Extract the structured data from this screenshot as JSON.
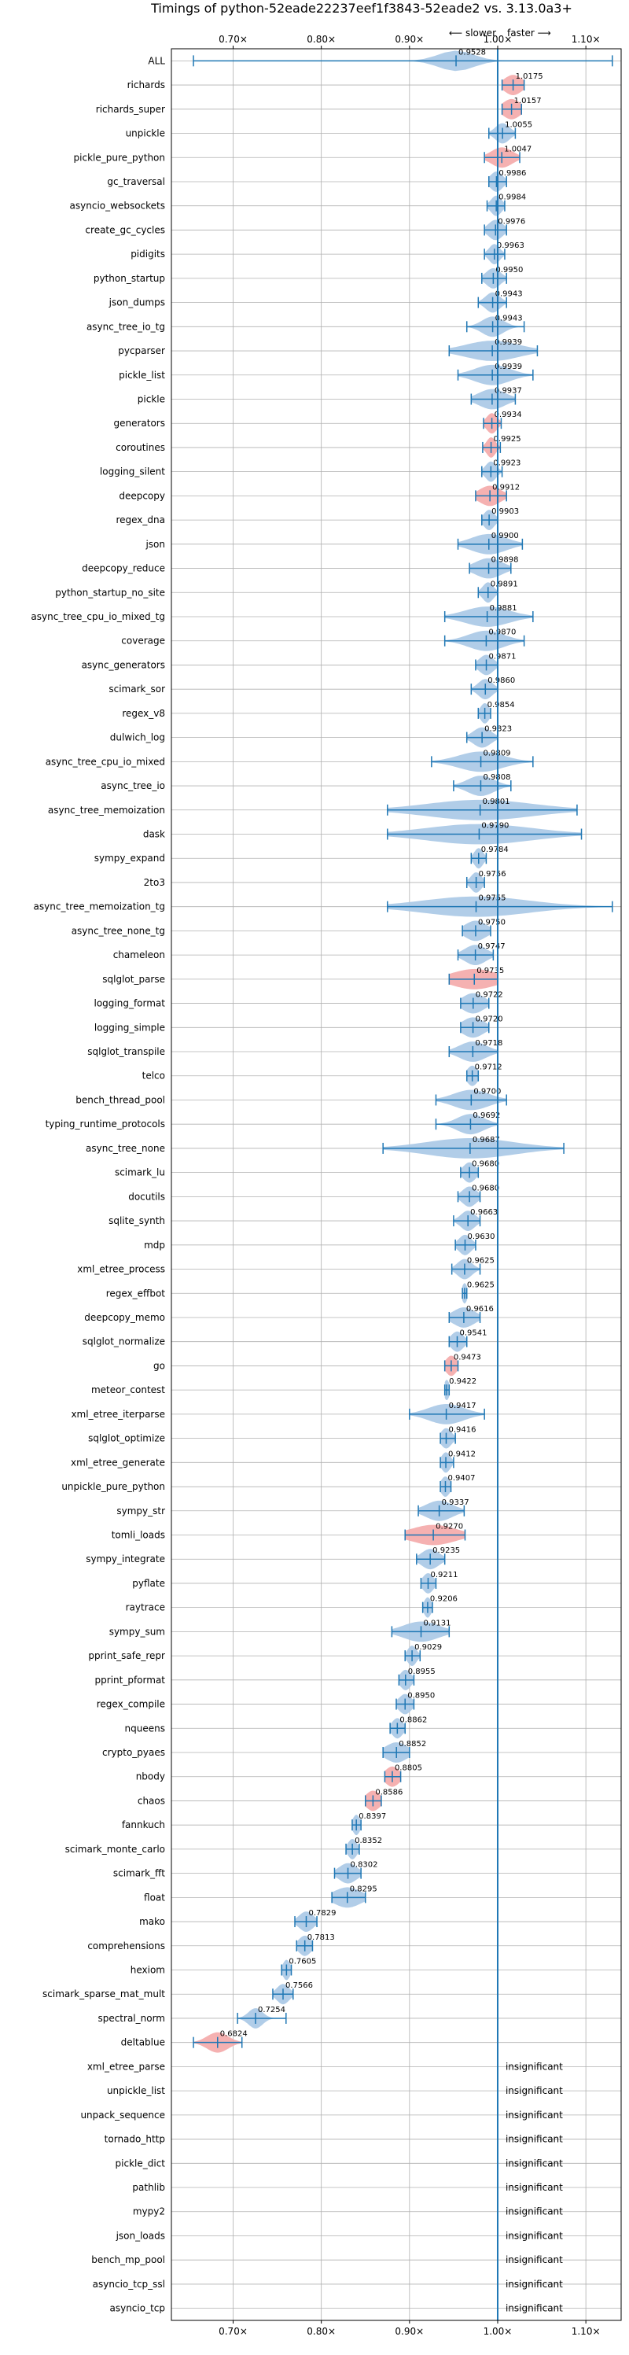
{
  "chart_data": {
    "type": "violin",
    "title": "Timings of python-52eade22237eef1f3843-52eade2 vs. 3.13.0a3+",
    "direction_slower": "⟵ slower",
    "direction_faster": "faster ⟶",
    "x_ticks": [
      "0.70×",
      "0.80×",
      "0.90×",
      "1.00×",
      "1.10×"
    ],
    "x_tick_values": [
      0.7,
      0.8,
      0.9,
      1.0,
      1.1
    ],
    "xlim": [
      0.63,
      1.14
    ],
    "insignificant_label": "insignificant",
    "benchmarks": [
      {
        "name": "ALL",
        "value": 0.9528,
        "label": "0.9528",
        "min": 0.655,
        "max": 1.13,
        "spread": 0.02,
        "color": "blue"
      },
      {
        "name": "richards",
        "value": 1.0175,
        "label": "1.0175",
        "min": 1.005,
        "max": 1.03,
        "spread": 0.01,
        "color": "red"
      },
      {
        "name": "richards_super",
        "value": 1.0157,
        "label": "1.0157",
        "min": 1.005,
        "max": 1.027,
        "spread": 0.01,
        "color": "red"
      },
      {
        "name": "unpickle",
        "value": 1.0055,
        "label": "1.0055",
        "min": 0.99,
        "max": 1.02,
        "spread": 0.008,
        "color": "blue"
      },
      {
        "name": "pickle_pure_python",
        "value": 1.0047,
        "label": "1.0047",
        "min": 0.985,
        "max": 1.025,
        "spread": 0.012,
        "color": "red"
      },
      {
        "name": "gc_traversal",
        "value": 0.9986,
        "label": "0.9986",
        "min": 0.99,
        "max": 1.01,
        "spread": 0.007,
        "color": "blue"
      },
      {
        "name": "asyncio_websockets",
        "value": 0.9984,
        "label": "0.9984",
        "min": 0.988,
        "max": 1.008,
        "spread": 0.006,
        "color": "blue"
      },
      {
        "name": "create_gc_cycles",
        "value": 0.9976,
        "label": "0.9976",
        "min": 0.985,
        "max": 1.01,
        "spread": 0.008,
        "color": "blue"
      },
      {
        "name": "pidigits",
        "value": 0.9963,
        "label": "0.9963",
        "min": 0.985,
        "max": 1.008,
        "spread": 0.006,
        "color": "blue"
      },
      {
        "name": "python_startup",
        "value": 0.995,
        "label": "0.9950",
        "min": 0.982,
        "max": 1.01,
        "spread": 0.008,
        "color": "blue"
      },
      {
        "name": "json_dumps",
        "value": 0.9943,
        "label": "0.9943",
        "min": 0.978,
        "max": 1.01,
        "spread": 0.008,
        "color": "blue"
      },
      {
        "name": "async_tree_io_tg",
        "value": 0.9943,
        "label": "0.9943",
        "min": 0.965,
        "max": 1.03,
        "spread": 0.012,
        "color": "blue"
      },
      {
        "name": "pycparser",
        "value": 0.9939,
        "label": "0.9939",
        "min": 0.945,
        "max": 1.045,
        "spread": 0.03,
        "color": "blue"
      },
      {
        "name": "pickle_list",
        "value": 0.9939,
        "label": "0.9939",
        "min": 0.955,
        "max": 1.04,
        "spread": 0.02,
        "color": "blue"
      },
      {
        "name": "pickle",
        "value": 0.9937,
        "label": "0.9937",
        "min": 0.97,
        "max": 1.02,
        "spread": 0.015,
        "color": "blue"
      },
      {
        "name": "generators",
        "value": 0.9934,
        "label": "0.9934",
        "min": 0.984,
        "max": 1.004,
        "spread": 0.006,
        "color": "red"
      },
      {
        "name": "coroutines",
        "value": 0.9925,
        "label": "0.9925",
        "min": 0.983,
        "max": 1.003,
        "spread": 0.005,
        "color": "red"
      },
      {
        "name": "logging_silent",
        "value": 0.9923,
        "label": "0.9923",
        "min": 0.982,
        "max": 1.005,
        "spread": 0.006,
        "color": "blue"
      },
      {
        "name": "deepcopy",
        "value": 0.9912,
        "label": "0.9912",
        "min": 0.975,
        "max": 1.01,
        "spread": 0.012,
        "color": "red"
      },
      {
        "name": "regex_dna",
        "value": 0.9903,
        "label": "0.9903",
        "min": 0.982,
        "max": 1.0,
        "spread": 0.006,
        "color": "blue"
      },
      {
        "name": "json",
        "value": 0.99,
        "label": "0.9900",
        "min": 0.955,
        "max": 1.028,
        "spread": 0.02,
        "color": "blue"
      },
      {
        "name": "deepcopy_reduce",
        "value": 0.9898,
        "label": "0.9898",
        "min": 0.968,
        "max": 1.015,
        "spread": 0.015,
        "color": "blue"
      },
      {
        "name": "python_startup_no_site",
        "value": 0.9891,
        "label": "0.9891",
        "min": 0.978,
        "max": 1.0,
        "spread": 0.006,
        "color": "blue"
      },
      {
        "name": "async_tree_cpu_io_mixed_tg",
        "value": 0.9881,
        "label": "0.9881",
        "min": 0.94,
        "max": 1.04,
        "spread": 0.025,
        "color": "blue"
      },
      {
        "name": "coverage",
        "value": 0.987,
        "label": "0.9870",
        "min": 0.94,
        "max": 1.03,
        "spread": 0.02,
        "color": "blue"
      },
      {
        "name": "async_generators",
        "value": 0.9871,
        "label": "0.9871",
        "min": 0.975,
        "max": 1.0,
        "spread": 0.008,
        "color": "blue"
      },
      {
        "name": "scimark_sor",
        "value": 0.986,
        "label": "0.9860",
        "min": 0.97,
        "max": 1.0,
        "spread": 0.008,
        "color": "blue"
      },
      {
        "name": "regex_v8",
        "value": 0.9854,
        "label": "0.9854",
        "min": 0.978,
        "max": 0.992,
        "spread": 0.005,
        "color": "blue"
      },
      {
        "name": "dulwich_log",
        "value": 0.9823,
        "label": "0.9823",
        "min": 0.965,
        "max": 1.0,
        "spread": 0.01,
        "color": "blue"
      },
      {
        "name": "async_tree_cpu_io_mixed",
        "value": 0.9809,
        "label": "0.9809",
        "min": 0.925,
        "max": 1.04,
        "spread": 0.025,
        "color": "blue"
      },
      {
        "name": "async_tree_io",
        "value": 0.9808,
        "label": "0.9808",
        "min": 0.95,
        "max": 1.015,
        "spread": 0.015,
        "color": "blue"
      },
      {
        "name": "async_tree_memoization",
        "value": 0.9801,
        "label": "0.9801",
        "min": 0.875,
        "max": 1.09,
        "spread": 0.06,
        "color": "blue"
      },
      {
        "name": "dask",
        "value": 0.979,
        "label": "0.9790",
        "min": 0.875,
        "max": 1.095,
        "spread": 0.06,
        "color": "blue"
      },
      {
        "name": "sympy_expand",
        "value": 0.9784,
        "label": "0.9784",
        "min": 0.97,
        "max": 0.987,
        "spread": 0.005,
        "color": "blue"
      },
      {
        "name": "2to3",
        "value": 0.9756,
        "label": "0.9756",
        "min": 0.965,
        "max": 0.985,
        "spread": 0.006,
        "color": "blue"
      },
      {
        "name": "async_tree_memoization_tg",
        "value": 0.9755,
        "label": "0.9755",
        "min": 0.875,
        "max": 1.13,
        "spread": 0.06,
        "color": "blue"
      },
      {
        "name": "async_tree_none_tg",
        "value": 0.975,
        "label": "0.9750",
        "min": 0.96,
        "max": 0.992,
        "spread": 0.012,
        "color": "blue"
      },
      {
        "name": "chameleon",
        "value": 0.9747,
        "label": "0.9747",
        "min": 0.955,
        "max": 0.995,
        "spread": 0.012,
        "color": "blue"
      },
      {
        "name": "sqlglot_parse",
        "value": 0.9735,
        "label": "0.9735",
        "min": 0.945,
        "max": 1.0,
        "spread": 0.025,
        "color": "red"
      },
      {
        "name": "logging_format",
        "value": 0.9722,
        "label": "0.9722",
        "min": 0.958,
        "max": 0.99,
        "spread": 0.012,
        "color": "blue"
      },
      {
        "name": "logging_simple",
        "value": 0.972,
        "label": "0.9720",
        "min": 0.958,
        "max": 0.99,
        "spread": 0.012,
        "color": "blue"
      },
      {
        "name": "sqlglot_transpile",
        "value": 0.9718,
        "label": "0.9718",
        "min": 0.945,
        "max": 1.0,
        "spread": 0.015,
        "color": "blue"
      },
      {
        "name": "telco",
        "value": 0.9712,
        "label": "0.9712",
        "min": 0.965,
        "max": 0.978,
        "spread": 0.006,
        "color": "blue"
      },
      {
        "name": "bench_thread_pool",
        "value": 0.97,
        "label": "0.9700",
        "min": 0.93,
        "max": 1.01,
        "spread": 0.02,
        "color": "blue"
      },
      {
        "name": "typing_runtime_protocols",
        "value": 0.9692,
        "label": "0.9692",
        "min": 0.93,
        "max": 1.0,
        "spread": 0.015,
        "color": "blue"
      },
      {
        "name": "async_tree_none",
        "value": 0.9687,
        "label": "0.9687",
        "min": 0.87,
        "max": 1.075,
        "spread": 0.05,
        "color": "blue"
      },
      {
        "name": "scimark_lu",
        "value": 0.968,
        "label": "0.9680",
        "min": 0.958,
        "max": 0.978,
        "spread": 0.007,
        "color": "blue"
      },
      {
        "name": "docutils",
        "value": 0.968,
        "label": "0.9680",
        "min": 0.955,
        "max": 0.98,
        "spread": 0.008,
        "color": "blue"
      },
      {
        "name": "sqlite_synth",
        "value": 0.9663,
        "label": "0.9663",
        "min": 0.95,
        "max": 0.98,
        "spread": 0.008,
        "color": "blue"
      },
      {
        "name": "mdp",
        "value": 0.963,
        "label": "0.9630",
        "min": 0.952,
        "max": 0.975,
        "spread": 0.007,
        "color": "blue"
      },
      {
        "name": "xml_etree_process",
        "value": 0.9625,
        "label": "0.9625",
        "min": 0.948,
        "max": 0.98,
        "spread": 0.008,
        "color": "blue"
      },
      {
        "name": "regex_effbot",
        "value": 0.9625,
        "label": "0.9625",
        "min": 0.96,
        "max": 0.965,
        "spread": 0.003,
        "color": "blue"
      },
      {
        "name": "deepcopy_memo",
        "value": 0.9616,
        "label": "0.9616",
        "min": 0.945,
        "max": 0.98,
        "spread": 0.012,
        "color": "blue"
      },
      {
        "name": "sqlglot_normalize",
        "value": 0.9541,
        "label": "0.9541",
        "min": 0.945,
        "max": 0.965,
        "spread": 0.007,
        "color": "blue"
      },
      {
        "name": "go",
        "value": 0.9473,
        "label": "0.9473",
        "min": 0.94,
        "max": 0.955,
        "spread": 0.006,
        "color": "red"
      },
      {
        "name": "meteor_contest",
        "value": 0.9422,
        "label": "0.9422",
        "min": 0.94,
        "max": 0.945,
        "spread": 0.003,
        "color": "blue"
      },
      {
        "name": "xml_etree_iterparse",
        "value": 0.9417,
        "label": "0.9417",
        "min": 0.9,
        "max": 0.985,
        "spread": 0.02,
        "color": "blue"
      },
      {
        "name": "sqlglot_optimize",
        "value": 0.9416,
        "label": "0.9416",
        "min": 0.935,
        "max": 0.952,
        "spread": 0.006,
        "color": "blue"
      },
      {
        "name": "xml_etree_generate",
        "value": 0.9412,
        "label": "0.9412",
        "min": 0.935,
        "max": 0.95,
        "spread": 0.005,
        "color": "blue"
      },
      {
        "name": "unpickle_pure_python",
        "value": 0.9407,
        "label": "0.9407",
        "min": 0.935,
        "max": 0.947,
        "spread": 0.005,
        "color": "blue"
      },
      {
        "name": "sympy_str",
        "value": 0.9337,
        "label": "0.9337",
        "min": 0.91,
        "max": 0.962,
        "spread": 0.015,
        "color": "blue"
      },
      {
        "name": "tomli_loads",
        "value": 0.927,
        "label": "0.9270",
        "min": 0.895,
        "max": 0.963,
        "spread": 0.025,
        "color": "red"
      },
      {
        "name": "sympy_integrate",
        "value": 0.9235,
        "label": "0.9235",
        "min": 0.908,
        "max": 0.94,
        "spread": 0.01,
        "color": "blue"
      },
      {
        "name": "pyflate",
        "value": 0.9211,
        "label": "0.9211",
        "min": 0.913,
        "max": 0.93,
        "spread": 0.006,
        "color": "blue"
      },
      {
        "name": "raytrace",
        "value": 0.9206,
        "label": "0.9206",
        "min": 0.915,
        "max": 0.926,
        "spread": 0.004,
        "color": "blue"
      },
      {
        "name": "sympy_sum",
        "value": 0.9131,
        "label": "0.9131",
        "min": 0.88,
        "max": 0.945,
        "spread": 0.02,
        "color": "blue"
      },
      {
        "name": "pprint_safe_repr",
        "value": 0.9029,
        "label": "0.9029",
        "min": 0.895,
        "max": 0.912,
        "spread": 0.005,
        "color": "blue"
      },
      {
        "name": "pprint_pformat",
        "value": 0.8955,
        "label": "0.8955",
        "min": 0.888,
        "max": 0.905,
        "spread": 0.006,
        "color": "blue"
      },
      {
        "name": "regex_compile",
        "value": 0.895,
        "label": "0.8950",
        "min": 0.885,
        "max": 0.905,
        "spread": 0.007,
        "color": "blue"
      },
      {
        "name": "nqueens",
        "value": 0.8862,
        "label": "0.8862",
        "min": 0.878,
        "max": 0.895,
        "spread": 0.006,
        "color": "blue"
      },
      {
        "name": "crypto_pyaes",
        "value": 0.8852,
        "label": "0.8852",
        "min": 0.87,
        "max": 0.9,
        "spread": 0.012,
        "color": "blue"
      },
      {
        "name": "nbody",
        "value": 0.8805,
        "label": "0.8805",
        "min": 0.872,
        "max": 0.89,
        "spread": 0.008,
        "color": "red"
      },
      {
        "name": "chaos",
        "value": 0.8586,
        "label": "0.8586",
        "min": 0.85,
        "max": 0.868,
        "spread": 0.008,
        "color": "red"
      },
      {
        "name": "fannkuch",
        "value": 0.8397,
        "label": "0.8397",
        "min": 0.835,
        "max": 0.845,
        "spread": 0.004,
        "color": "blue"
      },
      {
        "name": "scimark_monte_carlo",
        "value": 0.8352,
        "label": "0.8352",
        "min": 0.828,
        "max": 0.843,
        "spread": 0.005,
        "color": "blue"
      },
      {
        "name": "scimark_fft",
        "value": 0.8302,
        "label": "0.8302",
        "min": 0.815,
        "max": 0.845,
        "spread": 0.01,
        "color": "blue"
      },
      {
        "name": "float",
        "value": 0.8295,
        "label": "0.8295",
        "min": 0.812,
        "max": 0.85,
        "spread": 0.015,
        "color": "blue"
      },
      {
        "name": "mako",
        "value": 0.7829,
        "label": "0.7829",
        "min": 0.77,
        "max": 0.795,
        "spread": 0.008,
        "color": "blue"
      },
      {
        "name": "comprehensions",
        "value": 0.7813,
        "label": "0.7813",
        "min": 0.772,
        "max": 0.79,
        "spread": 0.007,
        "color": "blue"
      },
      {
        "name": "hexiom",
        "value": 0.7605,
        "label": "0.7605",
        "min": 0.755,
        "max": 0.766,
        "spread": 0.004,
        "color": "blue"
      },
      {
        "name": "scimark_sparse_mat_mult",
        "value": 0.7566,
        "label": "0.7566",
        "min": 0.745,
        "max": 0.768,
        "spread": 0.007,
        "color": "blue"
      },
      {
        "name": "spectral_norm",
        "value": 0.7254,
        "label": "0.7254",
        "min": 0.705,
        "max": 0.76,
        "spread": 0.008,
        "color": "blue"
      },
      {
        "name": "deltablue",
        "value": 0.6824,
        "label": "0.6824",
        "min": 0.655,
        "max": 0.71,
        "spread": 0.012,
        "color": "red"
      },
      {
        "name": "xml_etree_parse",
        "insignificant": true
      },
      {
        "name": "unpickle_list",
        "insignificant": true
      },
      {
        "name": "unpack_sequence",
        "insignificant": true
      },
      {
        "name": "tornado_http",
        "insignificant": true
      },
      {
        "name": "pickle_dict",
        "insignificant": true
      },
      {
        "name": "pathlib",
        "insignificant": true
      },
      {
        "name": "mypy2",
        "insignificant": true
      },
      {
        "name": "json_loads",
        "insignificant": true
      },
      {
        "name": "bench_mp_pool",
        "insignificant": true
      },
      {
        "name": "asyncio_tcp_ssl",
        "insignificant": true
      },
      {
        "name": "asyncio_tcp",
        "insignificant": true
      }
    ],
    "colors": {
      "violin_blue": "#a9c8e6",
      "violin_red": "#f4a9a9",
      "line_blue": "#1f77b4",
      "grid": "#b0b0b0",
      "frame": "#000000"
    },
    "grid": true
  }
}
